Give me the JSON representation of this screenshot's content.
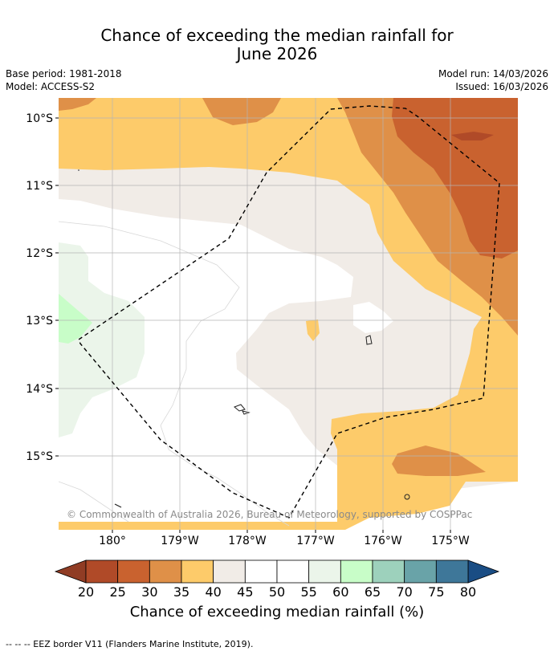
{
  "header": {
    "title_line1": "Chance of exceeding the median rainfall for",
    "title_line2": "June 2026",
    "base_period": "Base period: 1981-2018",
    "model": "Model: ACCESS-S2",
    "model_run": "Model run: 14/03/2026",
    "issued": "Issued: 16/03/2026"
  },
  "map": {
    "lat_labels": [
      "10°S",
      "11°S",
      "12°S",
      "13°S",
      "14°S",
      "15°S"
    ],
    "lon_labels": [
      "180°",
      "179°W",
      "178°W",
      "177°W",
      "176°W",
      "175°W"
    ],
    "copyright": "© Commonwealth of Australia 2026, Bureau of Meteorology, supported by COSPPac"
  },
  "colorbar": {
    "ticks": [
      "20",
      "25",
      "30",
      "35",
      "40",
      "45",
      "50",
      "55",
      "60",
      "65",
      "70",
      "75",
      "80"
    ],
    "colors": [
      "#b04a28",
      "#c9622f",
      "#df9048",
      "#fdcb6a",
      "#f1ece7",
      "#ffffff",
      "#ffffff",
      "#ebf5ea",
      "#c8fdc8",
      "#9dd1bc",
      "#69a3a8",
      "#3e7799"
    ],
    "low_color": "#903c24",
    "high_color": "#1a4d84",
    "label": "Chance of exceeding median rainfall (%)"
  },
  "footer": {
    "legend": "--  --  -- EEZ border V11 (Flanders Marine Institute, 2019)."
  }
}
